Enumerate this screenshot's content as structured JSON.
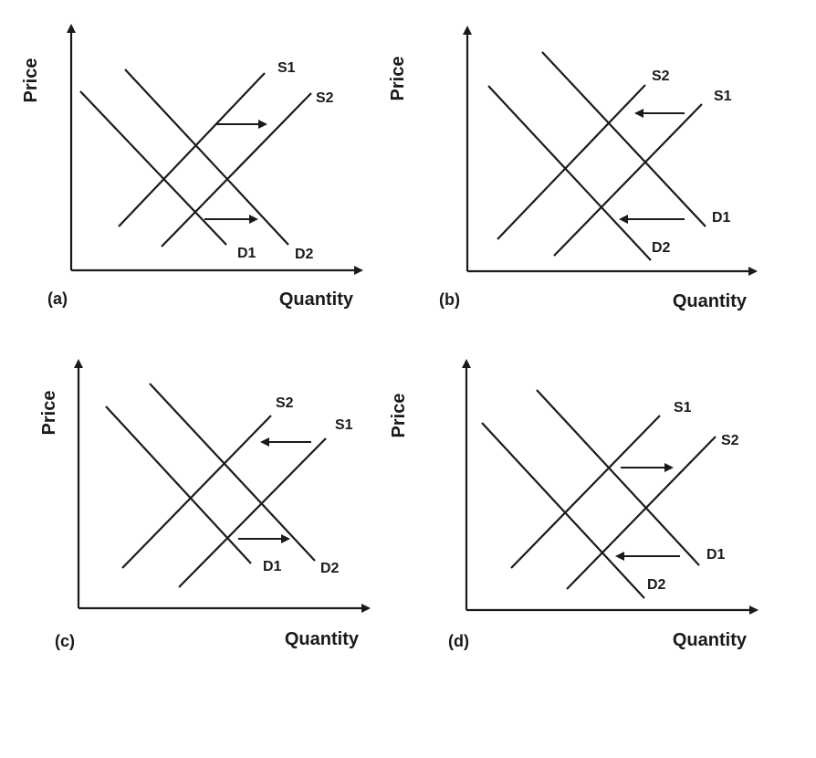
{
  "panels": [
    {
      "id": "a",
      "label": "(a)",
      "y_axis_label": "Price",
      "x_axis_label": "Quantity",
      "curves": {
        "d1": "D1",
        "d2": "D2",
        "s1": "S1",
        "s2": "S2"
      },
      "shifts": {
        "upper": "right",
        "lower": "right"
      }
    },
    {
      "id": "b",
      "label": "(b)",
      "y_axis_label": "Price",
      "x_axis_label": "Quantity",
      "curves": {
        "d1": "D1",
        "d2": "D2",
        "s1": "S1",
        "s2": "S2"
      },
      "shifts": {
        "upper": "left",
        "lower": "left"
      }
    },
    {
      "id": "c",
      "label": "(c)",
      "y_axis_label": "Price",
      "x_axis_label": "Quantity",
      "curves": {
        "d1": "D1",
        "d2": "D2",
        "s1": "S1",
        "s2": "S2"
      },
      "shifts": {
        "upper": "left",
        "lower": "right"
      }
    },
    {
      "id": "d",
      "label": "(d)",
      "y_axis_label": "Price",
      "x_axis_label": "Quantity",
      "curves": {
        "d1": "D1",
        "d2": "D2",
        "s1": "S1",
        "s2": "S2"
      },
      "shifts": {
        "upper": "right",
        "lower": "left"
      }
    }
  ]
}
